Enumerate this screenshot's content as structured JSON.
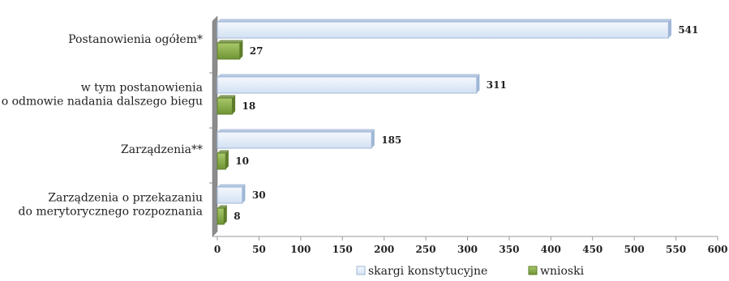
{
  "chart_data": {
    "type": "bar",
    "orientation": "horizontal",
    "categories": [
      [
        "Postanowienia ogółem*"
      ],
      [
        "w tym postanowienia",
        "o odmowie nadania dalszego biegu"
      ],
      [
        "Zarządzenia**"
      ],
      [
        "Zarządzenia o przekazaniu",
        "do merytorycznego rozpoznania"
      ]
    ],
    "series": [
      {
        "name": "skargi konstytucyjne",
        "values": [
          541,
          311,
          185,
          30
        ],
        "color": "#dde8f6",
        "edge": "#9fb7d6"
      },
      {
        "name": "wnioski",
        "values": [
          27,
          18,
          10,
          8
        ],
        "color": "#8db04a",
        "edge": "#5e7d2a"
      }
    ],
    "xlim": [
      0,
      600
    ],
    "xticks": [
      0,
      50,
      100,
      150,
      200,
      250,
      300,
      350,
      400,
      450,
      500,
      550,
      600
    ],
    "grid": false,
    "legend_position": "bottom",
    "style": "3d"
  }
}
